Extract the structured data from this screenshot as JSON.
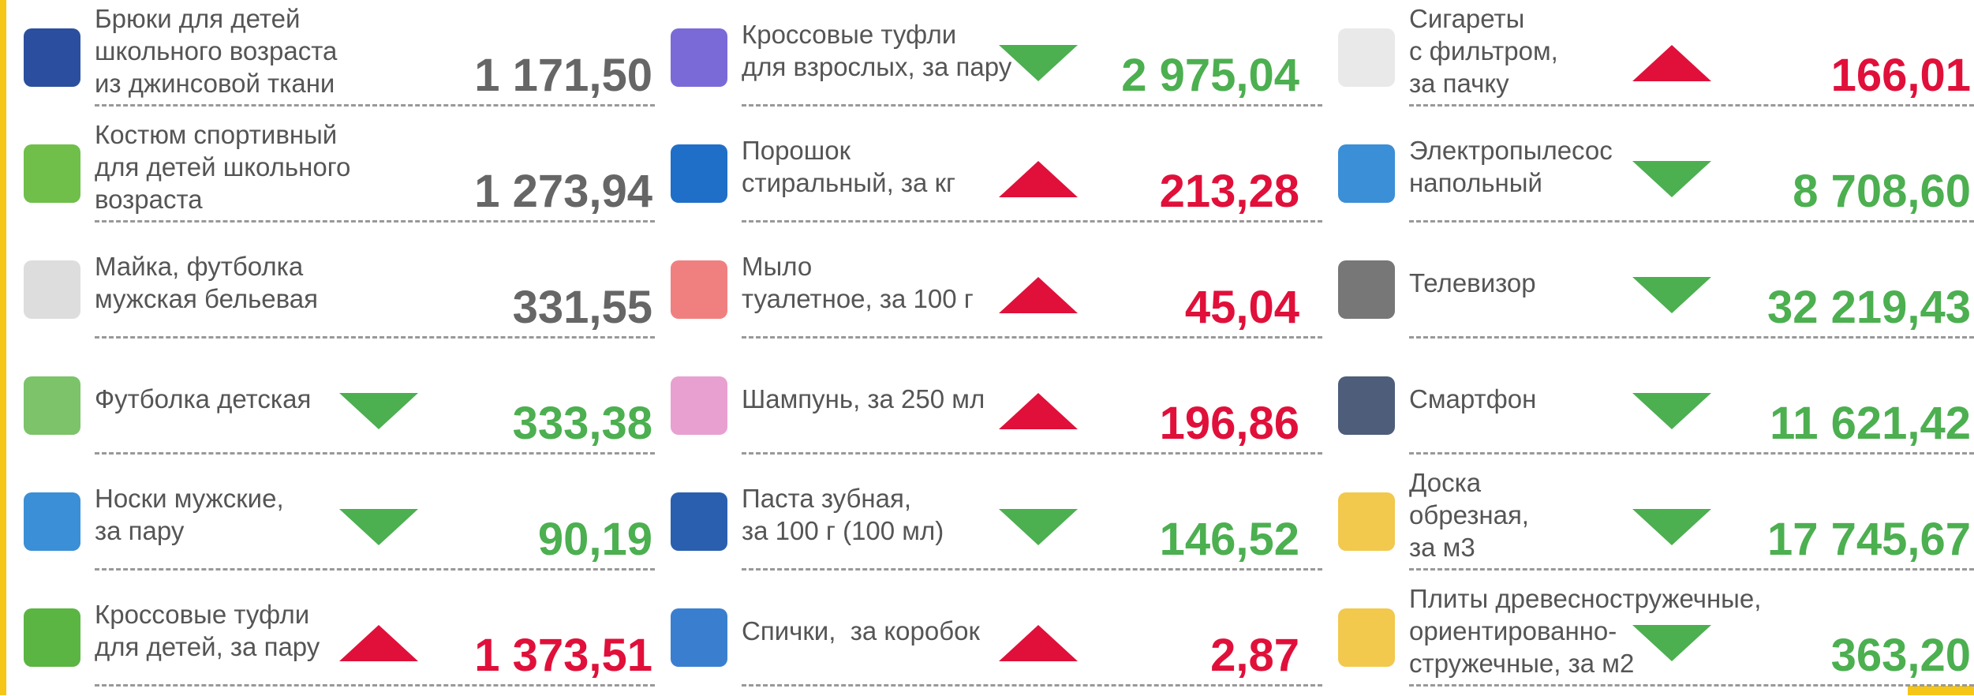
{
  "columns": [
    {
      "items": [
        {
          "label": [
            "Брюки для детей",
            "школьного возраста",
            "из джинсовой ткани"
          ],
          "price": "1 171,50",
          "trend": "none"
        },
        {
          "label": [
            "Костюм спортивный",
            "для детей школьного",
            "возраста"
          ],
          "price": "1 273,94",
          "trend": "none"
        },
        {
          "label": [
            "Майка, футболка",
            "мужская бельевая"
          ],
          "price": "331,55",
          "trend": "none"
        },
        {
          "label": [
            "Футболка детская"
          ],
          "price": "333,38",
          "trend": "down"
        },
        {
          "label": [
            "Носки мужские,",
            "за пару"
          ],
          "price": "90,19",
          "trend": "down"
        },
        {
          "label": [
            "Кроссовые туфли",
            "для детей, за пару"
          ],
          "price": "1 373,51",
          "trend": "up"
        }
      ]
    },
    {
      "items": [
        {
          "label": [
            "Кроссовые туфли",
            "для взрослых, за пару"
          ],
          "price": "2 975,04",
          "trend": "down"
        },
        {
          "label": [
            "Порошок",
            "стиральный, за кг"
          ],
          "price": "213,28",
          "trend": "up"
        },
        {
          "label": [
            "Мыло",
            "туалетное, за 100 г"
          ],
          "price": "45,04",
          "trend": "up"
        },
        {
          "label": [
            "Шампунь, за 250 мл"
          ],
          "price": "196,86",
          "trend": "up"
        },
        {
          "label": [
            "Паста зубная,",
            "за 100 г (100 мл)"
          ],
          "price": "146,52",
          "trend": "down"
        },
        {
          "label": [
            "Спички,  за коробок"
          ],
          "price": "2,87",
          "trend": "up"
        }
      ]
    },
    {
      "items": [
        {
          "label": [
            "Сигареты",
            "с фильтром,",
            "за пачку"
          ],
          "price": "166,01",
          "trend": "up"
        },
        {
          "label": [
            "Электропылесос",
            "напольный"
          ],
          "price": "8 708,60",
          "trend": "down"
        },
        {
          "label": [
            "Телевизор"
          ],
          "price": "32 219,43",
          "trend": "down"
        },
        {
          "label": [
            "Смартфон"
          ],
          "price": "11 621,42",
          "trend": "down"
        },
        {
          "label": [
            "Доска",
            "обрезная,",
            "за м3"
          ],
          "price": "17 745,67",
          "trend": "down"
        },
        {
          "label": [
            "Плиты древесностружечные,",
            "ориентированно-",
            "стружечные, за м2"
          ],
          "price": "363,20",
          "trend": "down"
        }
      ]
    }
  ]
}
